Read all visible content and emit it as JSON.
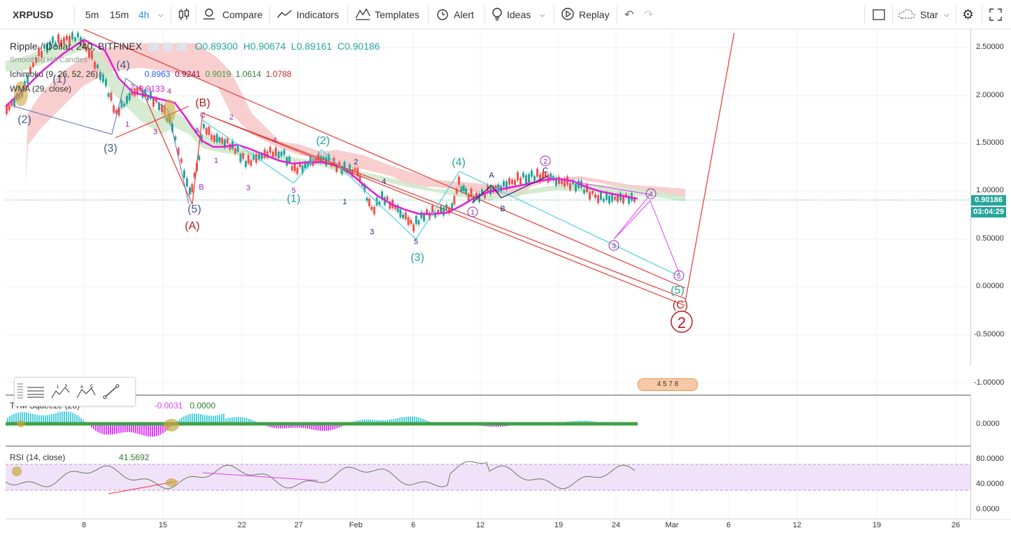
{
  "header": {
    "symbol": "XRPUSD",
    "intervals": [
      "5m",
      "15m",
      "4h"
    ],
    "active_interval": "4h",
    "compare": "Compare",
    "indicators": "Indicators",
    "templates": "Templates",
    "alert": "Alert",
    "ideas": "Ideas",
    "replay": "Replay",
    "star": "Star"
  },
  "main_legend": {
    "title": "Ripple / Dollar, 240, BITFINEX",
    "open": "O0.89300",
    "high": "H0.90674",
    "low": "L0.89161",
    "close": "C0.90186",
    "series_2": "Smoothed HA Candles",
    "ichimoku": "Ichimoku (9, 26, 52, 26)",
    "ichimoku_values": [
      "0.8963",
      "0.9241",
      "0.9019",
      "1.0614",
      "1.0788"
    ],
    "wma": "WMA (29, close)",
    "wma_value": "0.9133"
  },
  "price_scale": {
    "labels": [
      "2.50000",
      "2.00000",
      "1.50000",
      "1.00000",
      "0.50000",
      "0.00000",
      "-0.50000",
      "-1.00000"
    ],
    "last_price": "0.90186",
    "countdown": "03:04:29"
  },
  "time_axis": {
    "labels": [
      "8",
      "15",
      "22",
      "27",
      "Feb",
      "6",
      "12",
      "19",
      "24",
      "Mar",
      "6",
      "12",
      "19",
      "26"
    ]
  },
  "wave_labels": {
    "A_cap": "(A)",
    "B_cap": "(B)",
    "C_cap": "(C)",
    "w1": "(1)",
    "w2": "(2)",
    "w3": "(3)",
    "w4": "(4)",
    "w5": "(5)",
    "circle2": "2",
    "c1": "1",
    "c2": "2",
    "c3": "3",
    "c4": "4",
    "c5": "5",
    "A": "A",
    "B": "B",
    "C": "C",
    "n1": "1",
    "n2": "2",
    "n3": "3",
    "n4": "4",
    "n5": "5"
  },
  "squeeze": {
    "title": "TTM Squeeze (20)",
    "value1": "-0.0031",
    "value2": "0.0000",
    "scale": "0.0000"
  },
  "rsi": {
    "title": "RSI (14, close)",
    "value": "41.5692",
    "scale": [
      "80.0000",
      "40.0000",
      "0.0000"
    ]
  },
  "events": "4 5 7 8",
  "colors": {
    "up": "#26a69a",
    "down": "#ef5350",
    "wma": "#e01fd5",
    "cloud_red": "#f7c6c5",
    "cloud_green": "#cfe8c9",
    "rsi_band": "#ecdcf8",
    "wave_cyan": "#00bcd4",
    "wave_red": "#b71c1c"
  }
}
